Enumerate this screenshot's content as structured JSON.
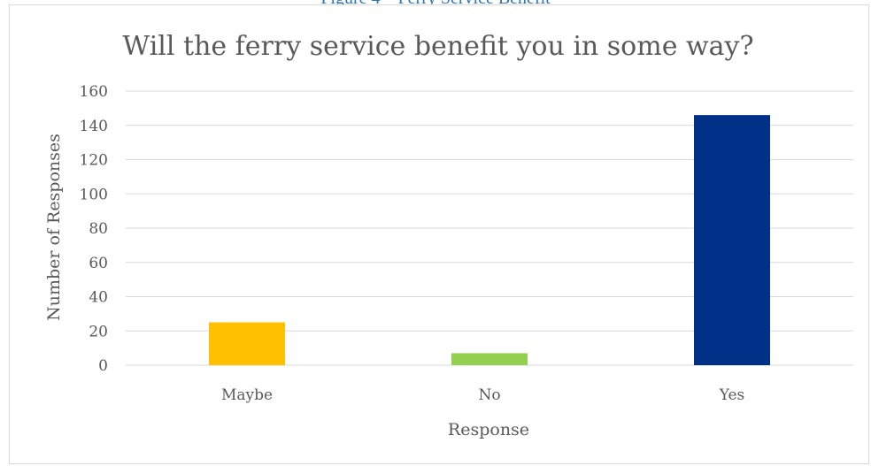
{
  "caption_partial": "Figure 4 – Ferry Service Benefit",
  "chart_data": {
    "type": "bar",
    "title": "Will the ferry service benefit you in some way?",
    "xlabel": "Response",
    "ylabel": "Number of Responses",
    "categories": [
      "Maybe",
      "No",
      "Yes"
    ],
    "values": [
      25,
      7,
      146
    ],
    "bar_colors": [
      "#FFC000",
      "#92D050",
      "#003087"
    ],
    "ylim": [
      0,
      160
    ],
    "yticks": [
      0,
      20,
      40,
      60,
      80,
      100,
      120,
      140,
      160
    ],
    "grid": true,
    "legend": "none",
    "gridline_color": "#d9d9d9",
    "text_color": "#595959"
  }
}
